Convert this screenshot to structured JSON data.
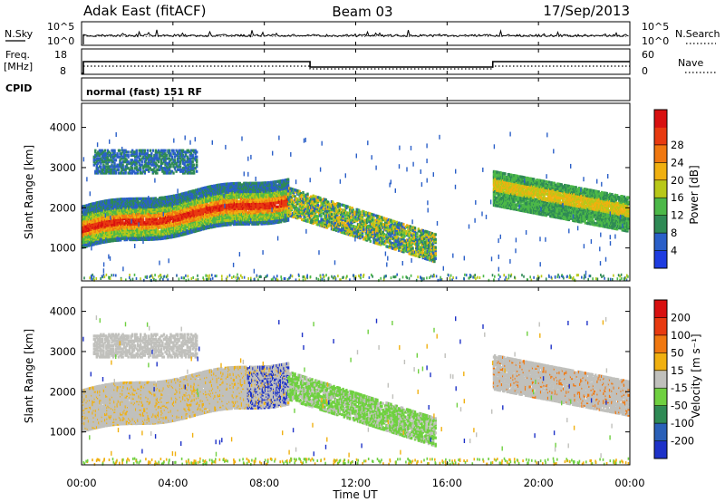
{
  "header": {
    "station": "Adak East (fitACF)",
    "beam": "Beam 03",
    "date": "17/Sep/2013"
  },
  "noise_panel": {
    "left_label": "N.Sky",
    "right_label": "N.Search",
    "left_ticks": [
      "10^5",
      "10^0"
    ],
    "right_ticks": [
      "10^5",
      "10^0"
    ]
  },
  "freq_panel": {
    "left_label_1": "Freq.",
    "left_label_2": "[MHz]",
    "right_label": "Nave",
    "left_ticks": [
      "18",
      "8"
    ],
    "right_ticks": [
      "60",
      "0"
    ]
  },
  "cpid": {
    "label": "CPID",
    "text": "normal (fast) 151 RF"
  },
  "chart_data": [
    {
      "type": "heatmap",
      "name": "power",
      "ylabel": "Slant Range [km]",
      "y_ticks": [
        1000,
        2000,
        3000,
        4000
      ],
      "ylim": [
        180,
        4600
      ],
      "colorbar": {
        "label": "Power [dB]",
        "ticks": [
          "4",
          "8",
          "12",
          "16",
          "20",
          "24",
          "28"
        ],
        "colors": [
          "#1e3ce0",
          "#2a5fc8",
          "#2f8a55",
          "#4cb848",
          "#b8c818",
          "#f0b010",
          "#f07810",
          "#e83a10",
          "#d81010"
        ]
      },
      "regions": [
        {
          "t_start": 0.0,
          "t_end": 9.0,
          "range_start": 1300,
          "range_end": 2300,
          "level": "high"
        },
        {
          "t_start": 0.5,
          "t_end": 5.0,
          "range_start": 2900,
          "range_end": 3500,
          "level": "medium"
        },
        {
          "t_start": 9.0,
          "t_end": 15.5,
          "range_start": 1000,
          "range_end": 2800,
          "level": "low"
        },
        {
          "t_start": 18.0,
          "t_end": 24.0,
          "range_start": 1500,
          "range_end": 2900,
          "level": "medium"
        }
      ]
    },
    {
      "type": "heatmap",
      "name": "velocity",
      "ylabel": "Slant Range [km]",
      "y_ticks": [
        1000,
        2000,
        3000,
        4000
      ],
      "ylim": [
        180,
        4600
      ],
      "colorbar": {
        "label": "Velocity [m s⁻¹]",
        "ticks": [
          "200",
          "100",
          "50",
          "15",
          "-15",
          "-50",
          "-100",
          "-200"
        ],
        "colors": [
          "#1e32c8",
          "#2a60b8",
          "#2f8a55",
          "#6fd040",
          "#c0c0bc",
          "#f0b010",
          "#f07810",
          "#e83a10",
          "#d81010"
        ]
      }
    }
  ],
  "x_axis": {
    "label": "Time UT",
    "ticks": [
      "00:00",
      "04:00",
      "08:00",
      "12:00",
      "16:00",
      "20:00",
      "00:00"
    ]
  }
}
